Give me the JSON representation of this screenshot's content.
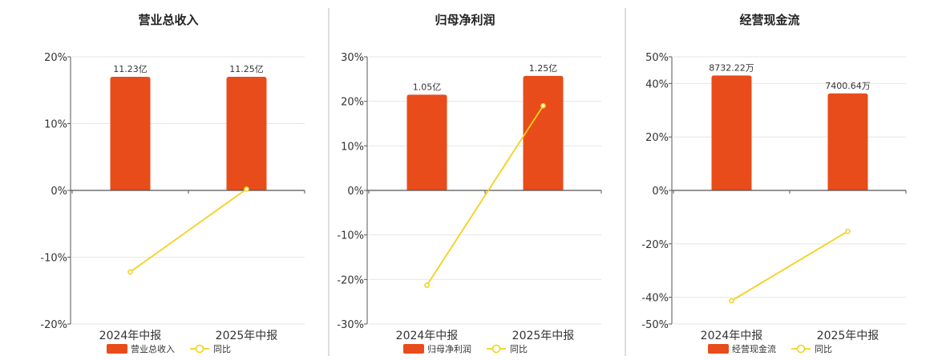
{
  "colors": {
    "bar": "#E84C1A",
    "line": "#F2D21B",
    "axis": "#555555",
    "grid": "#e6e6e6",
    "divider": "#bbbbbb"
  },
  "chart_data": [
    {
      "type": "bar",
      "title": "营业总收入",
      "categories": [
        "2024年中报",
        "2025年中报"
      ],
      "ylim": [
        -20,
        20
      ],
      "yticks": [
        20,
        10,
        0,
        -10,
        -20
      ],
      "tick_labels": [
        "20%",
        "10%",
        "0%",
        "-10%",
        "-20%"
      ],
      "series": [
        {
          "name": "营业总收入",
          "kind": "bar",
          "values": [
            17.0,
            17.0
          ],
          "labels": [
            "11.23亿",
            "11.25亿"
          ]
        },
        {
          "name": "同比",
          "kind": "line",
          "values": [
            -12.2,
            0.2
          ]
        }
      ],
      "legend": "bottom"
    },
    {
      "type": "bar",
      "title": "归母净利润",
      "categories": [
        "2024年中报",
        "2025年中报"
      ],
      "ylim": [
        -30,
        30
      ],
      "yticks": [
        30,
        20,
        10,
        0,
        -10,
        -20,
        -30
      ],
      "tick_labels": [
        "30%",
        "20%",
        "10%",
        "0%",
        "-10%",
        "-20%",
        "-30%"
      ],
      "series": [
        {
          "name": "归母净利润",
          "kind": "bar",
          "values": [
            21.5,
            25.7
          ],
          "labels": [
            "1.05亿",
            "1.25亿"
          ]
        },
        {
          "name": "同比",
          "kind": "line",
          "values": [
            -21.3,
            19.0
          ]
        }
      ],
      "legend": "bottom"
    },
    {
      "type": "bar",
      "title": "经营现金流",
      "categories": [
        "2024年中报",
        "2025年中报"
      ],
      "ylim": [
        -50,
        50
      ],
      "yticks": [
        50,
        40,
        20,
        0,
        -20,
        -40,
        -50
      ],
      "tick_labels": [
        "50%",
        "40%",
        "20%",
        "0%",
        "-20%",
        "-40%",
        "-50%"
      ],
      "series": [
        {
          "name": "经营现金流",
          "kind": "bar",
          "values": [
            43.0,
            36.3
          ],
          "labels": [
            "8732.22万",
            "7400.64万"
          ]
        },
        {
          "name": "同比",
          "kind": "line",
          "values": [
            -41.3,
            -15.3
          ]
        }
      ],
      "legend": "bottom"
    }
  ]
}
